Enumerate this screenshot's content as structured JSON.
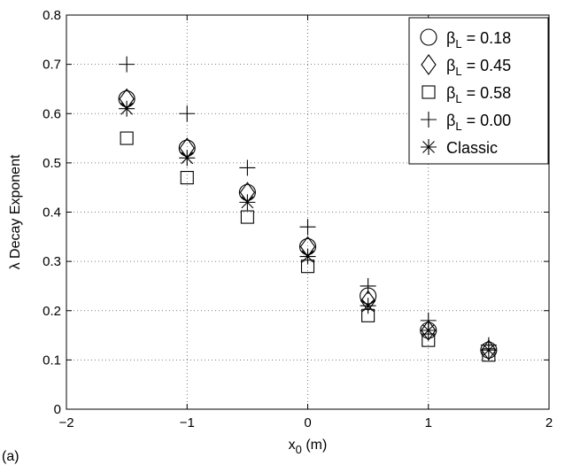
{
  "chart_data": {
    "type": "scatter",
    "panel_label": "(a)",
    "ylabel": "λ Decay Exponent",
    "xlabel_main": "x",
    "xlabel_sub": "0",
    "xlabel_unit": " (m)",
    "xlim": [
      -2,
      2
    ],
    "ylim": [
      0,
      0.8
    ],
    "xticks": [
      -2,
      -1,
      0,
      1,
      2
    ],
    "xtick_labels": [
      "−2",
      "−1",
      "0",
      "1",
      "2"
    ],
    "yticks": [
      0,
      0.1,
      0.2,
      0.3,
      0.4,
      0.5,
      0.6,
      0.7,
      0.8
    ],
    "ytick_labels": [
      "0",
      "0.1",
      "0.2",
      "0.3",
      "0.4",
      "0.5",
      "0.6",
      "0.7",
      "0.8"
    ],
    "grid": "dotted",
    "legend_position": "top-right",
    "x": [
      -1.5,
      -1,
      -0.5,
      0,
      0.5,
      1,
      1.5
    ],
    "series": [
      {
        "beta": "β",
        "sub": "L",
        "rest": " = 0.18",
        "marker": "circle",
        "values": [
          0.63,
          0.53,
          0.44,
          0.33,
          0.23,
          0.16,
          0.12
        ]
      },
      {
        "beta": "β",
        "sub": "L",
        "rest": " = 0.45",
        "marker": "diamond",
        "values": [
          0.63,
          0.53,
          0.44,
          0.33,
          0.22,
          0.16,
          0.12
        ]
      },
      {
        "beta": "β",
        "sub": "L",
        "rest": " = 0.58",
        "marker": "square",
        "values": [
          0.55,
          0.47,
          0.39,
          0.29,
          0.19,
          0.14,
          0.11
        ]
      },
      {
        "beta": "β",
        "sub": "L",
        "rest": " = 0.00",
        "marker": "plus",
        "values": [
          0.7,
          0.6,
          0.49,
          0.37,
          0.25,
          0.18,
          0.13
        ]
      },
      {
        "beta": "",
        "sub": "",
        "rest": "Classic",
        "marker": "star",
        "values": [
          0.61,
          0.51,
          0.42,
          0.31,
          0.21,
          0.16,
          0.12
        ]
      }
    ]
  }
}
